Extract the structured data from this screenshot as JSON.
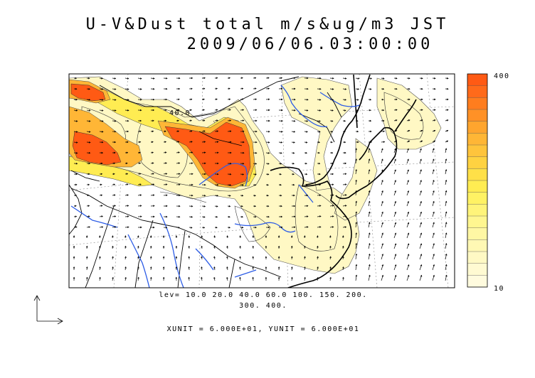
{
  "title": {
    "line1": "U-V&Dust total m/s&ug/m3 JST",
    "line2": "2009/06/06.03:00:00"
  },
  "contour_label": "40.0",
  "levels": {
    "line1": "lev= 10.0 20.0 40.0 60.0 100. 150. 200.",
    "line2": "300. 400."
  },
  "units": "XUNIT = 6.000E+01, YUNIT = 6.000E+01",
  "colorbar": {
    "max_label": "400",
    "min_label": "10",
    "colors": [
      "#ff5a14",
      "#ff6a1a",
      "#ff7d1e",
      "#ff9126",
      "#ffa52e",
      "#ffb636",
      "#ffc43c",
      "#ffd241",
      "#ffe048",
      "#ffec52",
      "#fff264",
      "#fff47a",
      "#fff690",
      "#fff7a4",
      "#fff8b4",
      "#fff9c4",
      "#fffad2",
      "#fffbde"
    ]
  },
  "colors": {
    "dust_light": "#fff8c4",
    "dust_medium": "#ffec52",
    "dust_orange": "#ffb636",
    "dust_heavy": "#ff5a14",
    "rivers": "#2c5ce6",
    "coast": "#000000"
  }
}
